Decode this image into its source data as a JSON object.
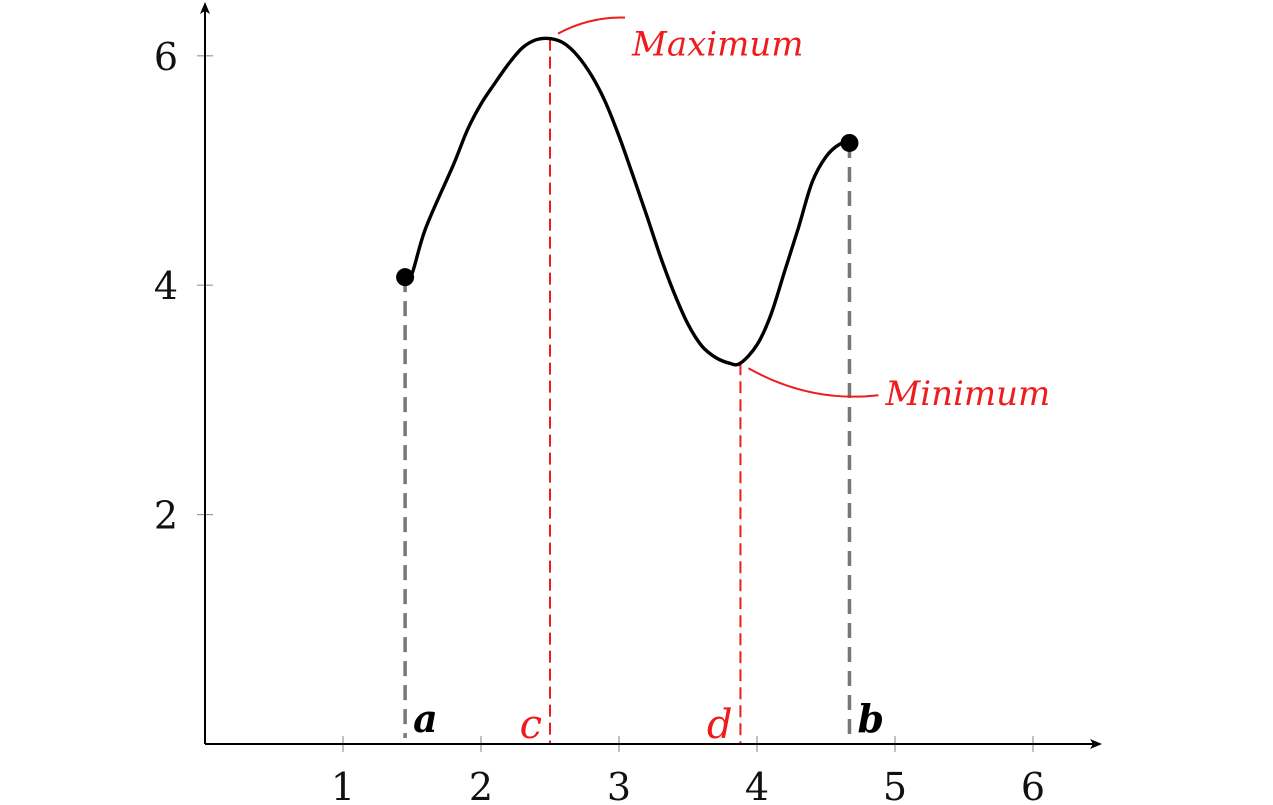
{
  "chart_data": {
    "type": "line",
    "title": "",
    "xlabel": "",
    "ylabel": "",
    "xlim": [
      0,
      6.5
    ],
    "ylim": [
      0,
      6.5
    ],
    "x_ticks": [
      1,
      2,
      3,
      4,
      5,
      6
    ],
    "y_ticks": [
      2,
      4,
      6
    ],
    "grid": false,
    "series": [
      {
        "x": [
          1.45,
          1.5,
          1.6,
          1.8,
          1.9,
          2.0,
          2.1,
          2.2,
          2.3,
          2.4,
          2.5,
          2.6,
          2.7,
          2.8,
          2.9,
          3.0,
          3.1,
          3.2,
          3.3,
          3.4,
          3.5,
          3.6,
          3.7,
          3.8,
          3.88,
          4.0,
          4.1,
          4.2,
          4.3,
          4.4,
          4.5,
          4.6,
          4.67
        ],
        "y": [
          4.07,
          4.1,
          4.5,
          5.05,
          5.35,
          5.58,
          5.76,
          5.93,
          6.07,
          6.14,
          6.15,
          6.11,
          6.0,
          5.83,
          5.6,
          5.3,
          4.96,
          4.61,
          4.25,
          3.93,
          3.66,
          3.47,
          3.37,
          3.32,
          3.32,
          3.48,
          3.74,
          4.12,
          4.5,
          4.9,
          5.12,
          5.23,
          5.24
        ],
        "color": "#000000"
      }
    ],
    "endpoints": [
      {
        "x": 1.45,
        "y": 4.07,
        "label": "a"
      },
      {
        "x": 4.67,
        "y": 5.24,
        "label": "b"
      }
    ],
    "extrema": [
      {
        "x": 2.5,
        "y": 6.15,
        "label": "c",
        "note": "Maximum"
      },
      {
        "x": 3.88,
        "y": 3.32,
        "label": "d",
        "note": "Minimum"
      }
    ],
    "colors": {
      "curve": "#000000",
      "endpoint_lines": "#777777",
      "extrema": "#ee1c1c",
      "axes": "#000000",
      "ticks": "#999999"
    }
  }
}
